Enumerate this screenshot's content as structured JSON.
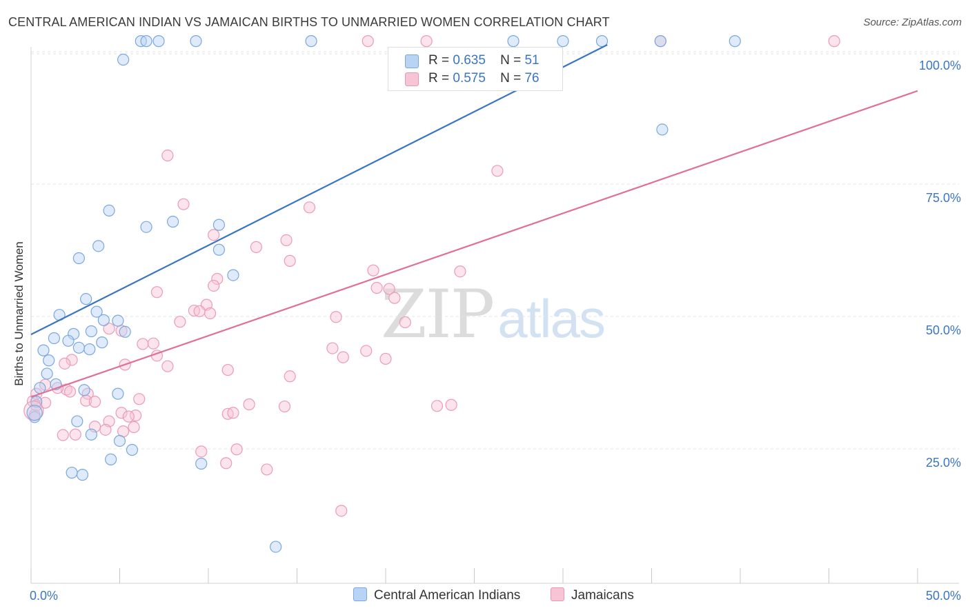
{
  "title": "CENTRAL AMERICAN INDIAN VS JAMAICAN BIRTHS TO UNMARRIED WOMEN CORRELATION CHART",
  "source": "Source: ZipAtlas.com",
  "watermark": {
    "zip": "ZIP",
    "atlas": "atlas"
  },
  "colors": {
    "blue": "#3a75c4",
    "pink": "#e07099",
    "blue_fill": "#b8d3f3",
    "pink_fill": "#f7c4d5"
  },
  "legend": {
    "series": [
      {
        "r_label": "R =",
        "r": "0.635",
        "n_label": "N =",
        "n": "51"
      },
      {
        "r_label": "R =",
        "r": "0.575",
        "n_label": "N =",
        "n": "76"
      }
    ]
  },
  "bottom_legend": [
    "Central American Indians",
    "Jamaicans"
  ],
  "chart_data": {
    "type": "scatter",
    "xlabel": "",
    "ylabel": "Births to Unmarried Women",
    "xlim": [
      0,
      50
    ],
    "ylim": [
      0,
      100
    ],
    "x_tick_labels": [
      {
        "value": 0,
        "label": "0.0%"
      },
      {
        "value": 50,
        "label": "50.0%"
      }
    ],
    "y_tick_labels": [
      {
        "value": 100,
        "label": "100.0%"
      },
      {
        "value": 75,
        "label": "75.0%"
      },
      {
        "value": 50,
        "label": "50.0%"
      },
      {
        "value": 25,
        "label": "25.0%"
      }
    ],
    "series": [
      {
        "name": "Central American Indians",
        "color": "#3a75c4",
        "trend": {
          "x": [
            0,
            32.5
          ],
          "y": [
            46.6,
            101.3
          ]
        },
        "points": [
          [
            6.2,
            102
          ],
          [
            6.5,
            102
          ],
          [
            7.2,
            102
          ],
          [
            9.3,
            102
          ],
          [
            15.8,
            102
          ],
          [
            27.2,
            102
          ],
          [
            30,
            102
          ],
          [
            32.2,
            102
          ],
          [
            35.5,
            102
          ],
          [
            39.7,
            102
          ],
          [
            5.2,
            98.5
          ],
          [
            35.6,
            85.3
          ],
          [
            4.4,
            70
          ],
          [
            6.5,
            66.9
          ],
          [
            8,
            67.9
          ],
          [
            10.6,
            67.3
          ],
          [
            3.8,
            63.3
          ],
          [
            10.6,
            62.6
          ],
          [
            2.7,
            61
          ],
          [
            11.4,
            57.8
          ],
          [
            3.1,
            53.3
          ],
          [
            3.7,
            50.9
          ],
          [
            1.6,
            50.3
          ],
          [
            4.1,
            49.3
          ],
          [
            4.9,
            49.2
          ],
          [
            2.4,
            46.7
          ],
          [
            3.4,
            47.2
          ],
          [
            5.3,
            47.1
          ],
          [
            4.0,
            45.1
          ],
          [
            1.3,
            45.9
          ],
          [
            2.1,
            45.4
          ],
          [
            2.7,
            44.1
          ],
          [
            3.3,
            43.8
          ],
          [
            0.7,
            43.6
          ],
          [
            1.0,
            41.7
          ],
          [
            0.9,
            39.2
          ],
          [
            0.5,
            36.5
          ],
          [
            4.9,
            35.4
          ],
          [
            3.0,
            36.1
          ],
          [
            1.4,
            37.2
          ],
          [
            0.3,
            33.9
          ],
          [
            0.2,
            31.0
          ],
          [
            2.6,
            30.2
          ],
          [
            3.4,
            27.7
          ],
          [
            5.0,
            26.5
          ],
          [
            4.5,
            23.0
          ],
          [
            5.7,
            24.8
          ],
          [
            9.6,
            22.2
          ],
          [
            2.3,
            20.5
          ],
          [
            2.9,
            20.1
          ],
          [
            13.8,
            6.5
          ]
        ]
      },
      {
        "name": "Jamaicans",
        "color": "#e07099",
        "trend": {
          "x": [
            0,
            50
          ],
          "y": [
            34.8,
            92.6
          ]
        },
        "points": [
          [
            19,
            102
          ],
          [
            35.5,
            102
          ],
          [
            45.3,
            102
          ],
          [
            22.3,
            102
          ],
          [
            7.7,
            80.4
          ],
          [
            26.3,
            77.5
          ],
          [
            8.6,
            71.2
          ],
          [
            15.7,
            70.6
          ],
          [
            10.3,
            65.4
          ],
          [
            14.4,
            64.4
          ],
          [
            12.7,
            63.1
          ],
          [
            14.6,
            60.5
          ],
          [
            19.3,
            58.7
          ],
          [
            24.2,
            58.5
          ],
          [
            10.5,
            57.1
          ],
          [
            10.3,
            55.8
          ],
          [
            19.5,
            55.4
          ],
          [
            20.2,
            55.2
          ],
          [
            7.1,
            54.6
          ],
          [
            20.5,
            53.5
          ],
          [
            9.9,
            52.2
          ],
          [
            9.2,
            51.1
          ],
          [
            9.5,
            51.0
          ],
          [
            10.1,
            50.6
          ],
          [
            17.2,
            49.9
          ],
          [
            21.1,
            48.9
          ],
          [
            8.4,
            49.0
          ],
          [
            4.4,
            47.7
          ],
          [
            5.1,
            47.3
          ],
          [
            6.9,
            44.9
          ],
          [
            17.0,
            44.0
          ],
          [
            6.3,
            44.8
          ],
          [
            18.9,
            43.5
          ],
          [
            17.6,
            42.3
          ],
          [
            20.0,
            42.0
          ],
          [
            7.1,
            42.6
          ],
          [
            5.3,
            40.9
          ],
          [
            7.7,
            40.6
          ],
          [
            11.1,
            39.9
          ],
          [
            2.3,
            41.8
          ],
          [
            1.9,
            41.1
          ],
          [
            14.6,
            38.7
          ],
          [
            0.8,
            37.1
          ],
          [
            0.3,
            35.4
          ],
          [
            3.2,
            35.4
          ],
          [
            2.0,
            36.2
          ],
          [
            2.2,
            35.8
          ],
          [
            1.5,
            36.5
          ],
          [
            3.1,
            34.1
          ],
          [
            3.6,
            33.9
          ],
          [
            6.1,
            34.4
          ],
          [
            12.3,
            33.4
          ],
          [
            14.3,
            33.0
          ],
          [
            22.9,
            33.1
          ],
          [
            23.7,
            33.3
          ],
          [
            11.1,
            31.6
          ],
          [
            11.4,
            31.8
          ],
          [
            5.1,
            31.8
          ],
          [
            5.9,
            31.3
          ],
          [
            5.5,
            31.1
          ],
          [
            4.4,
            30.2
          ],
          [
            5.8,
            29.1
          ],
          [
            3.6,
            29.2
          ],
          [
            4.2,
            28.6
          ],
          [
            5.2,
            28.3
          ],
          [
            2.5,
            27.7
          ],
          [
            1.8,
            27.6
          ],
          [
            0.1,
            34.0
          ],
          [
            0.2,
            31.4
          ],
          [
            0.3,
            33.2
          ],
          [
            9.6,
            24.5
          ],
          [
            11.6,
            24.9
          ],
          [
            11.0,
            22.3
          ],
          [
            13.3,
            21.1
          ],
          [
            17.5,
            13.3
          ],
          [
            0.8,
            33.7
          ]
        ]
      }
    ]
  }
}
